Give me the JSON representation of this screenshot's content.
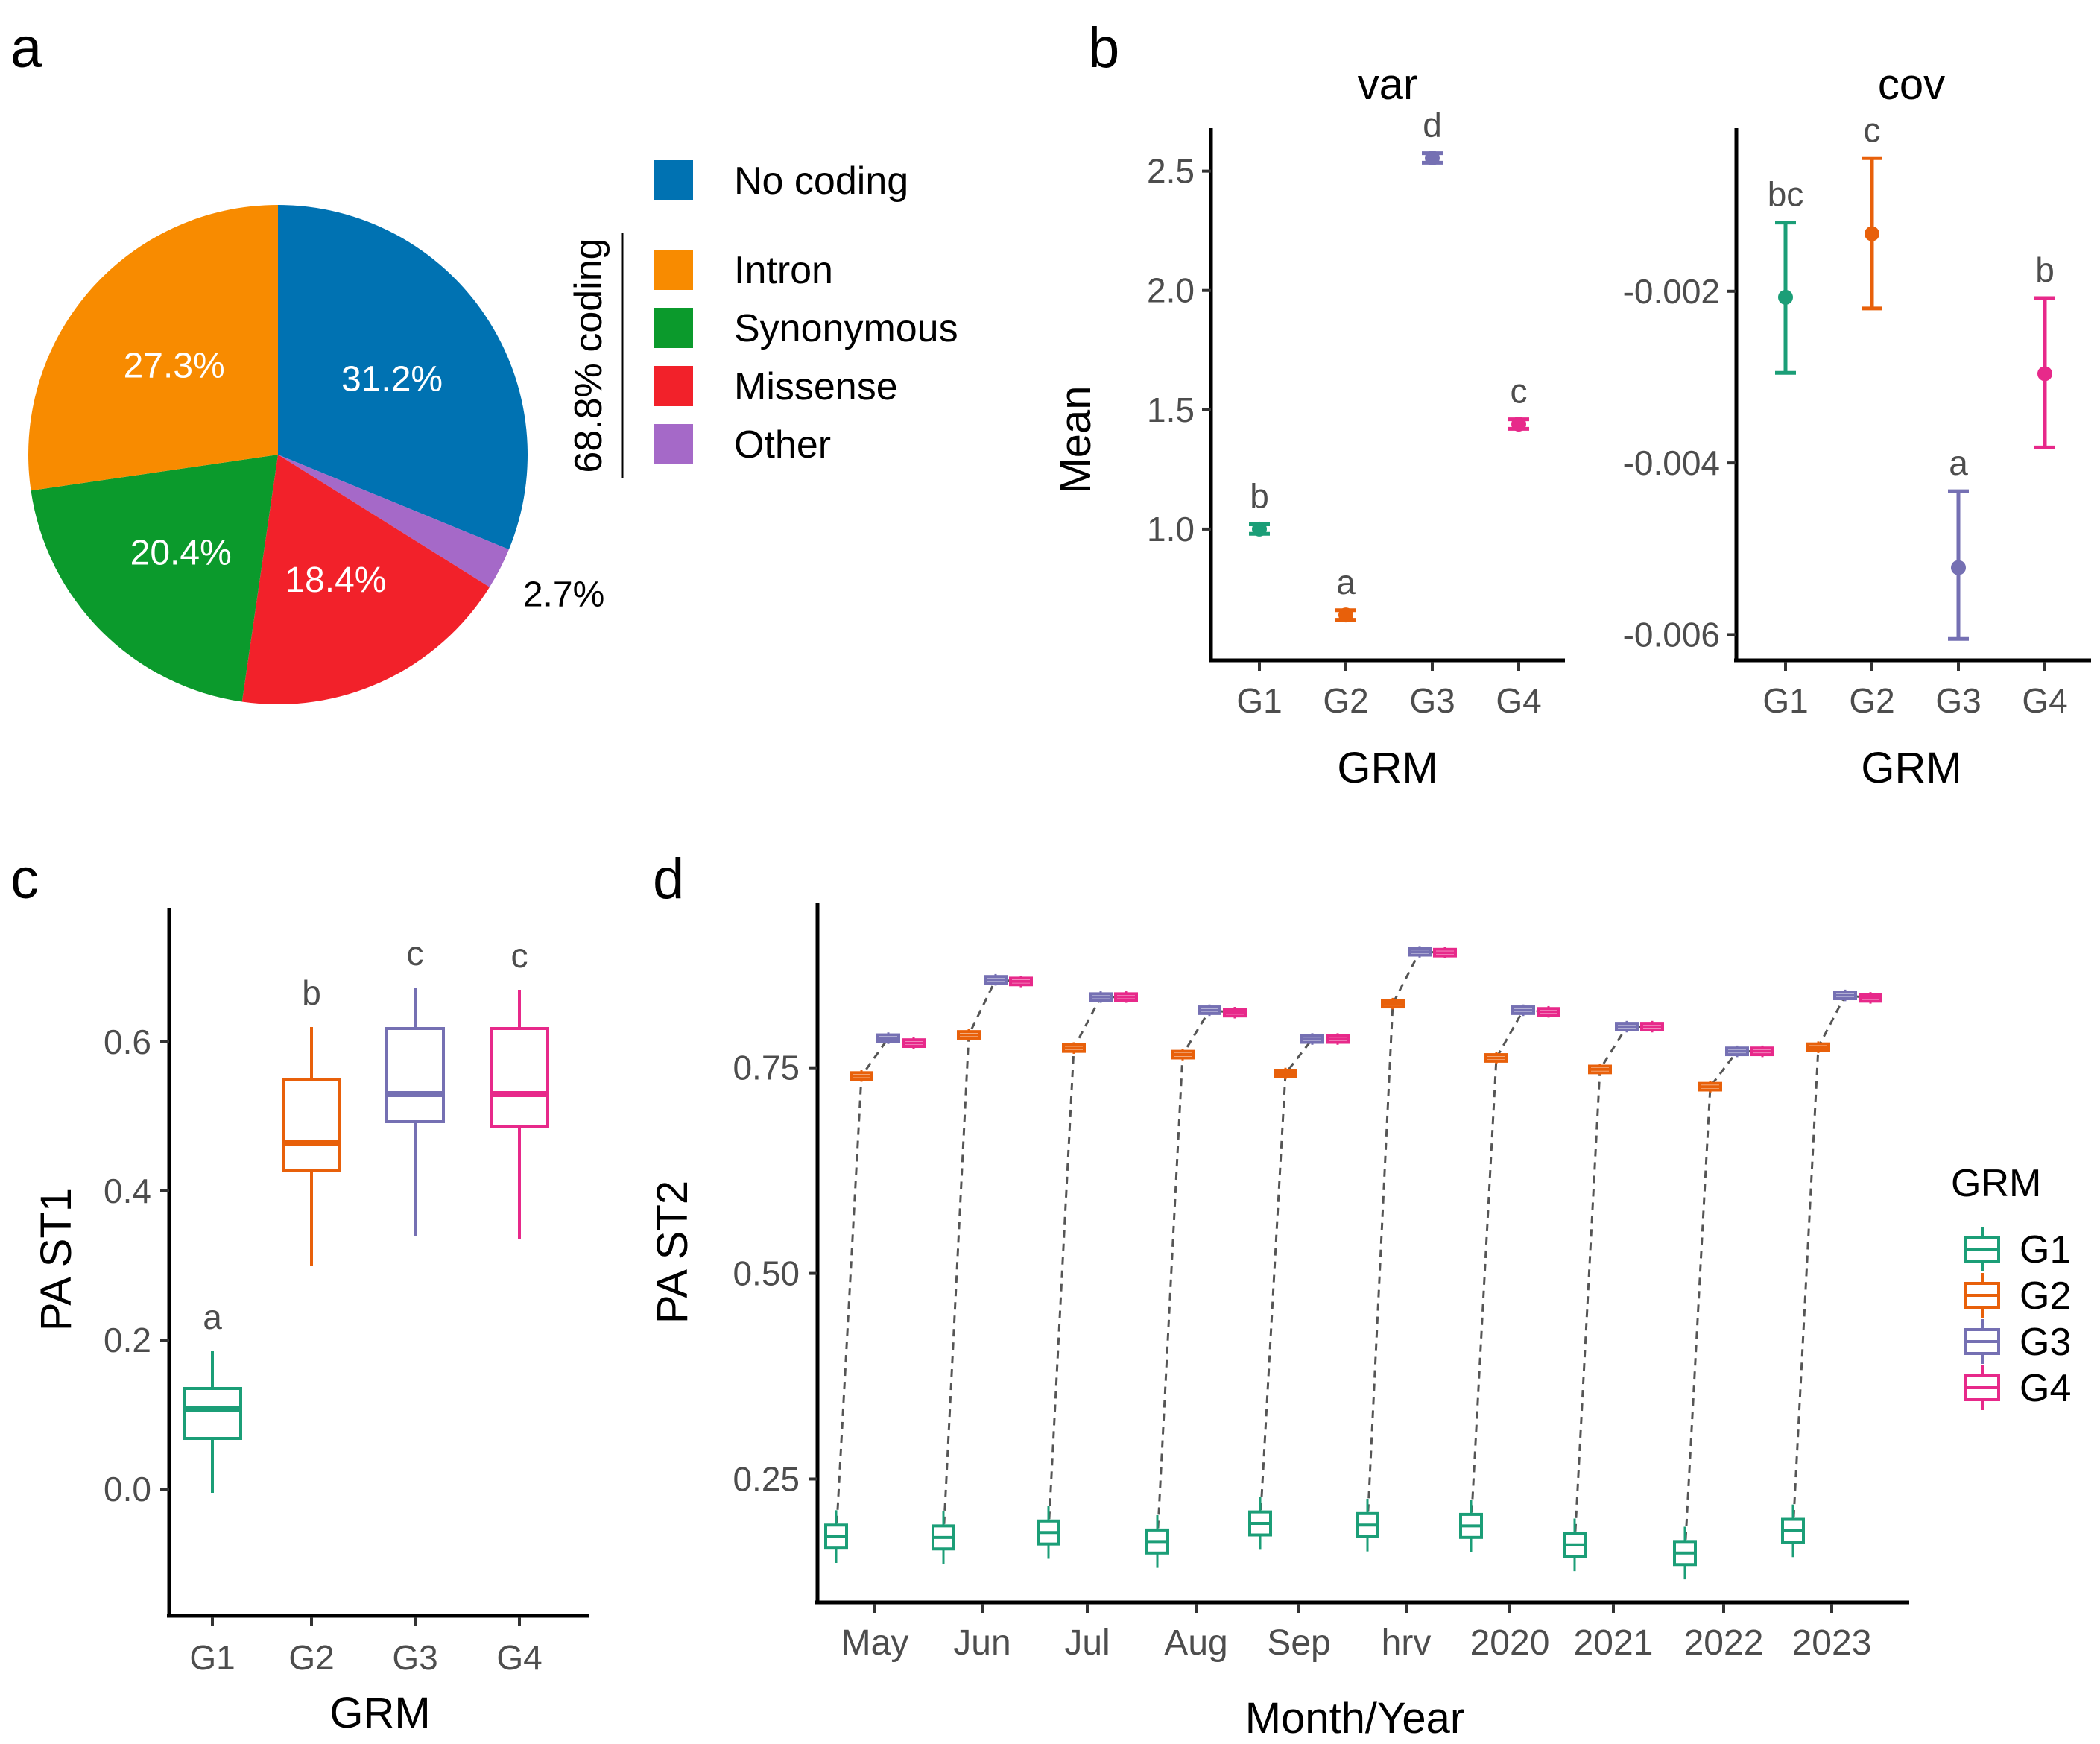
{
  "panel_labels": {
    "a": "a",
    "b": "b",
    "c": "c",
    "d": "d"
  },
  "chart_data": [
    {
      "id": "a",
      "type": "pie",
      "slices": [
        {
          "name": "No coding",
          "label": "31.2%",
          "value": 31.2,
          "color": "#0072B2",
          "label_color": "#ffffff"
        },
        {
          "name": "Other",
          "label": "2.7%",
          "value": 2.7,
          "color": "#A569C8",
          "label_color": "#000000"
        },
        {
          "name": "Missense",
          "label": "18.4%",
          "value": 18.4,
          "color": "#F2212A",
          "label_color": "#ffffff"
        },
        {
          "name": "Synonymous",
          "label": "20.4%",
          "value": 20.4,
          "color": "#0B9A2C",
          "label_color": "#ffffff"
        },
        {
          "name": "Intron",
          "label": "27.3%",
          "value": 27.3,
          "color": "#F88B00",
          "label_color": "#ffffff"
        }
      ],
      "legend": [
        {
          "name": "No coding",
          "color": "#0072B2"
        },
        {
          "name": "Intron",
          "color": "#F88B00"
        },
        {
          "name": "Synonymous",
          "color": "#0B9A2C"
        },
        {
          "name": "Missense",
          "color": "#F2212A"
        },
        {
          "name": "Other",
          "color": "#A569C8"
        }
      ],
      "bracket_label": "68.8% coding"
    },
    {
      "id": "b",
      "type": "scatter",
      "ylabel": "Mean",
      "xlabel": "GRM",
      "facets": [
        {
          "title": "var",
          "categories": [
            "G1",
            "G2",
            "G3",
            "G4"
          ],
          "ylim": [
            0.45,
            2.68
          ],
          "yticks": [
            {
              "v": 1.0,
              "label": "1.0"
            },
            {
              "v": 1.5,
              "label": "1.5"
            },
            {
              "v": 2.0,
              "label": "2.0"
            },
            {
              "v": 2.5,
              "label": "2.5"
            }
          ],
          "points": [
            {
              "x": "G1",
              "mean": 1.0,
              "lo": 0.98,
              "hi": 1.02,
              "letter": "b",
              "color": "#1B9E77"
            },
            {
              "x": "G2",
              "mean": 0.64,
              "lo": 0.62,
              "hi": 0.66,
              "letter": "a",
              "color": "#E8600A"
            },
            {
              "x": "G3",
              "mean": 2.555,
              "lo": 2.535,
              "hi": 2.575,
              "letter": "d",
              "color": "#7570B3"
            },
            {
              "x": "G4",
              "mean": 1.44,
              "lo": 1.42,
              "hi": 1.46,
              "letter": "c",
              "color": "#E7298A"
            }
          ]
        },
        {
          "title": "cov",
          "categories": [
            "G1",
            "G2",
            "G3",
            "G4"
          ],
          "ylim": [
            -0.0063,
            -0.0001
          ],
          "yticks": [
            {
              "v": -0.006,
              "label": "-0.006"
            },
            {
              "v": -0.004,
              "label": "-0.004"
            },
            {
              "v": -0.002,
              "label": "-0.002"
            }
          ],
          "points": [
            {
              "x": "G1",
              "mean": -0.00207,
              "lo": -0.00295,
              "hi": -0.0012,
              "letter": "bc",
              "color": "#1B9E77"
            },
            {
              "x": "G2",
              "mean": -0.00133,
              "lo": -0.0022,
              "hi": -0.00045,
              "letter": "c",
              "color": "#E8600A"
            },
            {
              "x": "G3",
              "mean": -0.00522,
              "lo": -0.00605,
              "hi": -0.00433,
              "letter": "a",
              "color": "#7570B3"
            },
            {
              "x": "G4",
              "mean": -0.00296,
              "lo": -0.00382,
              "hi": -0.00208,
              "letter": "b",
              "color": "#E7298A"
            }
          ]
        }
      ]
    },
    {
      "id": "c",
      "type": "box",
      "ylabel": "PA ST1",
      "xlabel": "GRM",
      "categories": [
        "G1",
        "G2",
        "G3",
        "G4"
      ],
      "ylim": [
        -0.17,
        0.78
      ],
      "yticks": [
        {
          "v": 0.0,
          "label": "0.0"
        },
        {
          "v": 0.2,
          "label": "0.2"
        },
        {
          "v": 0.4,
          "label": "0.4"
        },
        {
          "v": 0.6,
          "label": "0.6"
        }
      ],
      "boxes": [
        {
          "x": "G1",
          "min": -0.005,
          "q1": 0.068,
          "median": 0.108,
          "q3": 0.135,
          "max": 0.185,
          "letter": "a",
          "color": "#1B9E77"
        },
        {
          "x": "G2",
          "min": 0.3,
          "q1": 0.428,
          "median": 0.465,
          "q3": 0.55,
          "max": 0.62,
          "letter": "b",
          "color": "#E8600A"
        },
        {
          "x": "G3",
          "min": 0.34,
          "q1": 0.493,
          "median": 0.53,
          "q3": 0.618,
          "max": 0.673,
          "letter": "c",
          "color": "#7570B3"
        },
        {
          "x": "G4",
          "min": 0.335,
          "q1": 0.487,
          "median": 0.53,
          "q3": 0.618,
          "max": 0.67,
          "letter": "c",
          "color": "#E7298A"
        }
      ]
    },
    {
      "id": "d",
      "type": "box",
      "ylabel": "PA ST2",
      "xlabel": "Month/Year",
      "categories": [
        "May",
        "Jun",
        "Jul",
        "Aug",
        "Sep",
        "hrv",
        "2020",
        "2021",
        "2022",
        "2023"
      ],
      "ylim": [
        0.1,
        0.95
      ],
      "yticks": [
        {
          "v": 0.25,
          "label": "0.25"
        },
        {
          "v": 0.5,
          "label": "0.50"
        },
        {
          "v": 0.75,
          "label": "0.75"
        }
      ],
      "groups": [
        {
          "name": "G1",
          "color": "#1B9E77",
          "medians": [
            0.18,
            0.179,
            0.185,
            0.174,
            0.196,
            0.194,
            0.193,
            0.17,
            0.16,
            0.187
          ]
        },
        {
          "name": "G2",
          "color": "#E8600A",
          "medians": [
            0.74,
            0.79,
            0.774,
            0.766,
            0.743,
            0.828,
            0.762,
            0.748,
            0.727,
            0.775
          ]
        },
        {
          "name": "G3",
          "color": "#7570B3",
          "medians": [
            0.786,
            0.857,
            0.836,
            0.82,
            0.785,
            0.891,
            0.82,
            0.8,
            0.77,
            0.838
          ]
        },
        {
          "name": "G4",
          "color": "#E7298A",
          "medians": [
            0.78,
            0.855,
            0.836,
            0.817,
            0.785,
            0.89,
            0.818,
            0.8,
            0.77,
            0.835
          ]
        }
      ],
      "legend_title": "GRM"
    }
  ]
}
